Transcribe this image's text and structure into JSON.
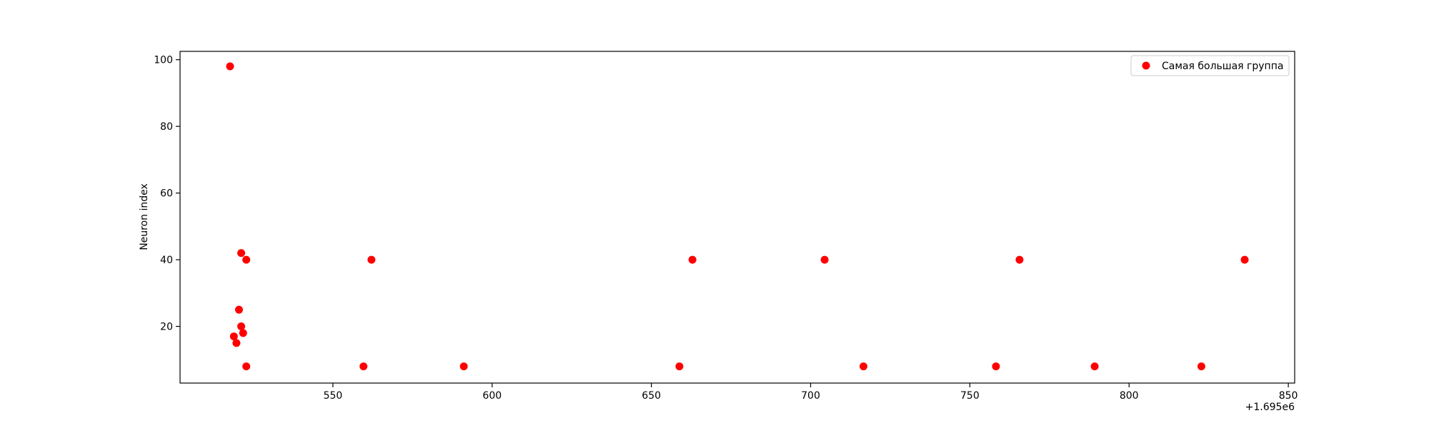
{
  "chart_data": {
    "type": "scatter",
    "title": "",
    "xlabel": "",
    "ylabel": "Neuron index",
    "x_offset_text": "+1.695e6",
    "xlim": [
      502,
      852
    ],
    "ylim": [
      3,
      102.5
    ],
    "xticks": [
      550,
      600,
      650,
      700,
      750,
      800,
      850
    ],
    "xtick_labels": [
      "550",
      "600",
      "650",
      "700",
      "750",
      "800",
      "850"
    ],
    "yticks": [
      20,
      40,
      60,
      80,
      100
    ],
    "ytick_labels": [
      "20",
      "40",
      "60",
      "80",
      "100"
    ],
    "grid": false,
    "legend_position": "top-right",
    "series": [
      {
        "name": "Самая большая группа",
        "color": "#ff0000",
        "points": [
          {
            "x": 517.7,
            "y": 98
          },
          {
            "x": 521.2,
            "y": 42
          },
          {
            "x": 522.8,
            "y": 40
          },
          {
            "x": 520.5,
            "y": 25
          },
          {
            "x": 521.2,
            "y": 20
          },
          {
            "x": 521.8,
            "y": 18
          },
          {
            "x": 518.9,
            "y": 17
          },
          {
            "x": 519.7,
            "y": 15
          },
          {
            "x": 522.8,
            "y": 8
          },
          {
            "x": 562.1,
            "y": 40
          },
          {
            "x": 559.6,
            "y": 8
          },
          {
            "x": 591.1,
            "y": 8
          },
          {
            "x": 658.8,
            "y": 8
          },
          {
            "x": 662.9,
            "y": 40
          },
          {
            "x": 704.4,
            "y": 40
          },
          {
            "x": 716.6,
            "y": 8
          },
          {
            "x": 758.2,
            "y": 8
          },
          {
            "x": 765.6,
            "y": 40
          },
          {
            "x": 789.2,
            "y": 8
          },
          {
            "x": 822.7,
            "y": 8
          },
          {
            "x": 836.3,
            "y": 40
          }
        ]
      }
    ]
  }
}
